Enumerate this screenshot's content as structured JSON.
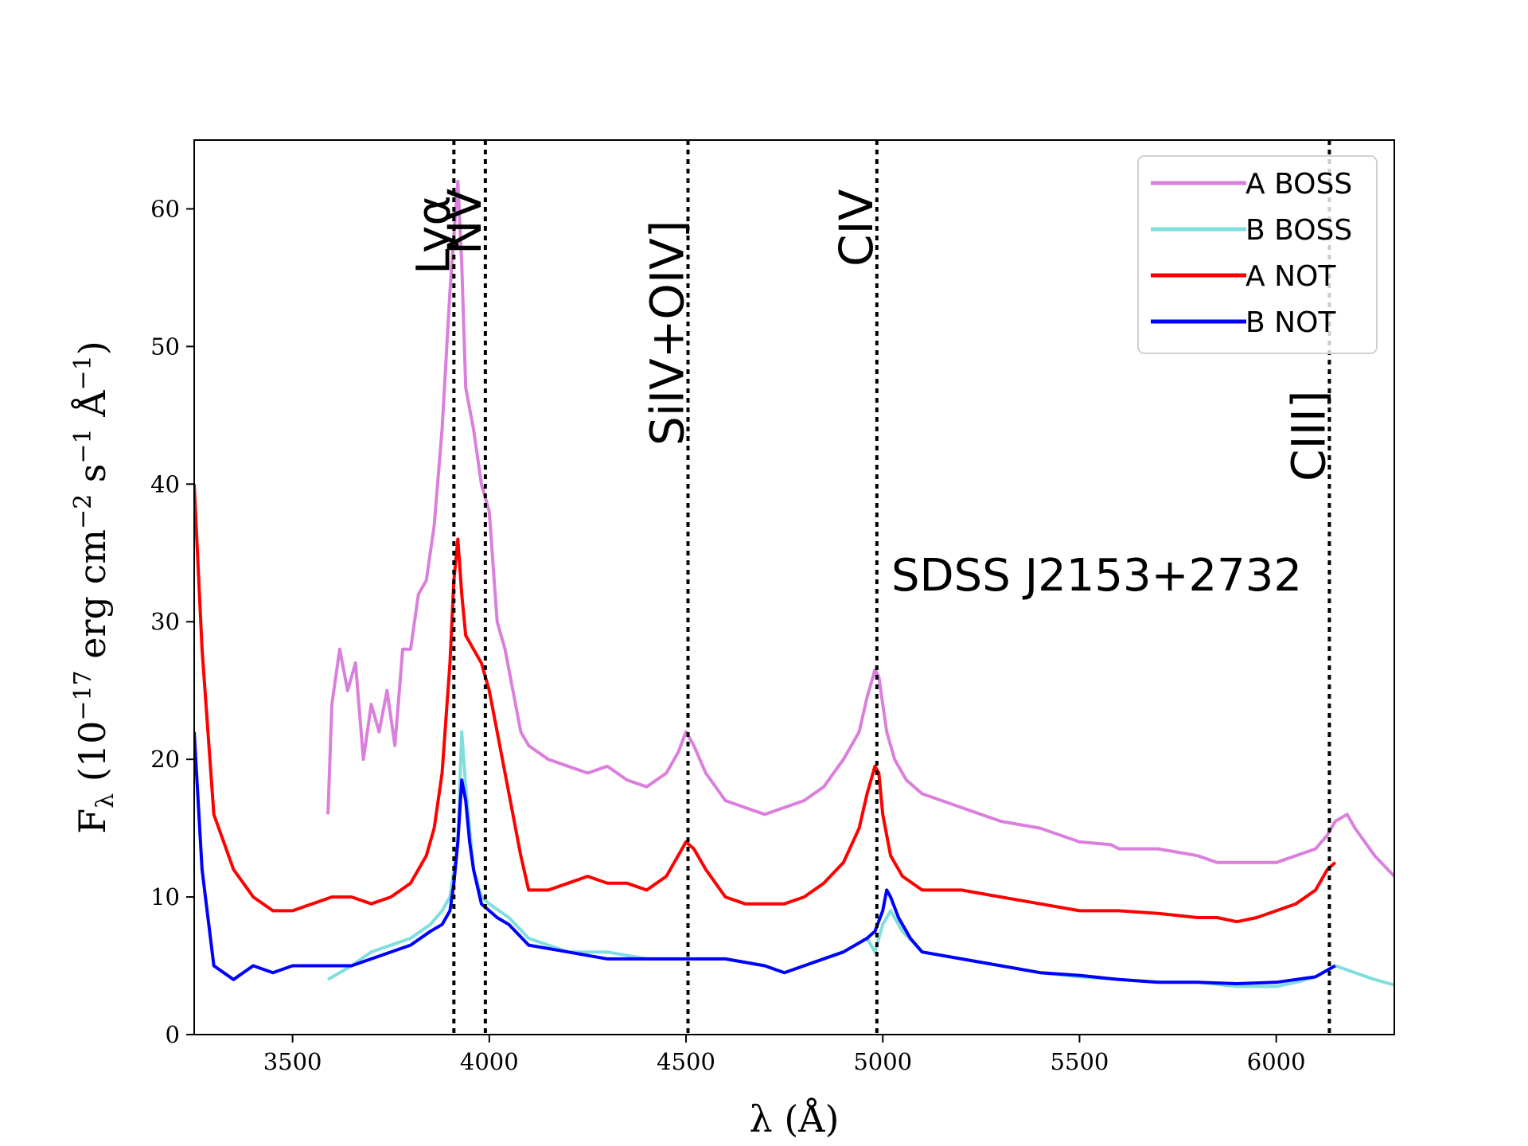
{
  "chart_data": {
    "type": "line",
    "title": "",
    "annotation": "SDSS J2153+2732",
    "xlabel": "λ (Å)",
    "ylabel_main": "F",
    "ylabel_sub": "λ",
    "ylabel_rest": " (10",
    "ylabel_exp1": "−17",
    "ylabel_mid": " erg cm",
    "ylabel_exp2": "−2",
    "ylabel_mid2": " s",
    "ylabel_exp3": "−1",
    "ylabel_mid3": " Å",
    "ylabel_exp4": "−1",
    "ylabel_end": ")",
    "xlim": [
      3250,
      6300
    ],
    "ylim": [
      0,
      65
    ],
    "xticks": [
      {
        "value": 3500,
        "label": "3500"
      },
      {
        "value": 4000,
        "label": "4000"
      },
      {
        "value": 4500,
        "label": "4500"
      },
      {
        "value": 5000,
        "label": "5000"
      },
      {
        "value": 5500,
        "label": "5500"
      },
      {
        "value": 6000,
        "label": "6000"
      }
    ],
    "yticks": [
      {
        "value": 0,
        "label": "0"
      },
      {
        "value": 10,
        "label": "10"
      },
      {
        "value": 20,
        "label": "20"
      },
      {
        "value": 30,
        "label": "30"
      },
      {
        "value": 40,
        "label": "40"
      },
      {
        "value": 50,
        "label": "50"
      },
      {
        "value": 60,
        "label": "60"
      }
    ],
    "emission_lines": [
      {
        "name": "Lyα",
        "x": 3910
      },
      {
        "name": "NV",
        "x": 3990
      },
      {
        "name": "SiIV+OIV]",
        "x": 4505
      },
      {
        "name": "CIV",
        "x": 4985
      },
      {
        "name": "CIII]",
        "x": 6135
      }
    ],
    "series": [
      {
        "name": "A BOSS",
        "color": "#da7fdc",
        "x": [
          3590,
          3600,
          3620,
          3640,
          3660,
          3680,
          3700,
          3720,
          3740,
          3760,
          3780,
          3800,
          3820,
          3840,
          3860,
          3880,
          3900,
          3910,
          3920,
          3930,
          3940,
          3960,
          3980,
          4000,
          4020,
          4040,
          4060,
          4080,
          4100,
          4150,
          4200,
          4250,
          4300,
          4350,
          4400,
          4450,
          4480,
          4500,
          4520,
          4550,
          4600,
          4650,
          4700,
          4750,
          4800,
          4850,
          4900,
          4940,
          4960,
          4980,
          4990,
          5000,
          5010,
          5030,
          5060,
          5100,
          5150,
          5200,
          5300,
          5400,
          5500,
          5580,
          5600,
          5700,
          5800,
          5850,
          5900,
          5950,
          6000,
          6050,
          6100,
          6130,
          6150,
          6180,
          6200,
          6250,
          6300
        ],
        "values": [
          16,
          24,
          28,
          25,
          27,
          20,
          24,
          22,
          25,
          21,
          28,
          28,
          32,
          33,
          37,
          44,
          54,
          58,
          62,
          56,
          47,
          44,
          40,
          38,
          30,
          28,
          25,
          22,
          21,
          20,
          19.5,
          19,
          19.5,
          18.5,
          18,
          19,
          20.5,
          22,
          21,
          19,
          17,
          16.5,
          16,
          16.5,
          17,
          18,
          20,
          22,
          24.5,
          26.5,
          26,
          24,
          22,
          20,
          18.5,
          17.5,
          17,
          16.5,
          15.5,
          15,
          14,
          13.8,
          13.5,
          13.5,
          13,
          12.5,
          12.5,
          12.5,
          12.5,
          13,
          13.5,
          14.5,
          15.5,
          16,
          15,
          13,
          11.5
        ]
      },
      {
        "name": "B BOSS",
        "color": "#7fdede",
        "x": [
          3590,
          3650,
          3700,
          3750,
          3800,
          3850,
          3880,
          3900,
          3920,
          3930,
          3940,
          3960,
          3980,
          4000,
          4050,
          4100,
          4200,
          4300,
          4400,
          4500,
          4600,
          4700,
          4750,
          4800,
          4900,
          4960,
          4980,
          5000,
          5020,
          5050,
          5100,
          5200,
          5300,
          5400,
          5500,
          5600,
          5700,
          5800,
          5900,
          6000,
          6050,
          6100,
          6150,
          6200,
          6250,
          6300
        ],
        "values": [
          4,
          5,
          6,
          6.5,
          7,
          8,
          9,
          10,
          14,
          22,
          18,
          12,
          10,
          9.5,
          8.5,
          7,
          6,
          6,
          5.5,
          5.5,
          5.5,
          5,
          4.5,
          5,
          6,
          7,
          6,
          8,
          9,
          7.5,
          6,
          5.5,
          5,
          4.5,
          4.2,
          4,
          3.8,
          3.8,
          3.5,
          3.5,
          3.8,
          4.2,
          5,
          4.5,
          4,
          3.6
        ]
      },
      {
        "name": "A NOT",
        "color": "#ff0000",
        "x": [
          3250,
          3270,
          3300,
          3350,
          3400,
          3450,
          3500,
          3550,
          3600,
          3650,
          3700,
          3750,
          3800,
          3820,
          3840,
          3860,
          3880,
          3900,
          3910,
          3920,
          3930,
          3940,
          3960,
          3980,
          4000,
          4020,
          4040,
          4060,
          4080,
          4100,
          4150,
          4200,
          4250,
          4300,
          4350,
          4400,
          4450,
          4480,
          4500,
          4520,
          4550,
          4600,
          4650,
          4700,
          4750,
          4800,
          4850,
          4900,
          4940,
          4960,
          4980,
          4990,
          5000,
          5020,
          5050,
          5100,
          5150,
          5200,
          5300,
          5400,
          5500,
          5600,
          5700,
          5800,
          5850,
          5900,
          5950,
          6000,
          6050,
          6100,
          6130,
          6150
        ],
        "values": [
          40,
          28,
          16,
          12,
          10,
          9,
          9,
          9.5,
          10,
          10,
          9.5,
          10,
          11,
          12,
          13,
          15,
          19,
          27,
          33,
          36,
          32,
          29,
          28,
          27,
          25,
          22,
          19,
          16,
          13,
          10.5,
          10.5,
          11,
          11.5,
          11,
          11,
          10.5,
          11.5,
          13,
          14,
          13.5,
          12,
          10,
          9.5,
          9.5,
          9.5,
          10,
          11,
          12.5,
          15,
          17.5,
          19.5,
          19,
          16,
          13,
          11.5,
          10.5,
          10.5,
          10.5,
          10,
          9.5,
          9,
          9,
          8.8,
          8.5,
          8.5,
          8.2,
          8.5,
          9,
          9.5,
          10.5,
          12,
          12.5
        ]
      },
      {
        "name": "B NOT",
        "color": "#0000ff",
        "x": [
          3250,
          3270,
          3300,
          3350,
          3400,
          3450,
          3500,
          3550,
          3600,
          3650,
          3700,
          3750,
          3800,
          3850,
          3880,
          3900,
          3910,
          3920,
          3930,
          3940,
          3950,
          3960,
          3980,
          4000,
          4020,
          4050,
          4100,
          4200,
          4300,
          4400,
          4500,
          4600,
          4700,
          4750,
          4800,
          4900,
          4960,
          4980,
          5000,
          5010,
          5020,
          5040,
          5070,
          5100,
          5200,
          5300,
          5400,
          5500,
          5600,
          5700,
          5800,
          5900,
          6000,
          6050,
          6100,
          6150
        ],
        "values": [
          22,
          12,
          5,
          4,
          5,
          4.5,
          5,
          5,
          5,
          5,
          5.5,
          6,
          6.5,
          7.5,
          8,
          9,
          11,
          14,
          18.5,
          17,
          14,
          12,
          9.5,
          9,
          8.5,
          8,
          6.5,
          6,
          5.5,
          5.5,
          5.5,
          5.5,
          5,
          4.5,
          5,
          6,
          7,
          7.5,
          9,
          10.5,
          10,
          8.5,
          7,
          6,
          5.5,
          5,
          4.5,
          4.3,
          4,
          3.8,
          3.8,
          3.7,
          3.8,
          4,
          4.2,
          5
        ]
      }
    ],
    "legend": {
      "placement": "top-right",
      "entries": [
        "A BOSS",
        "B BOSS",
        "A NOT",
        "B NOT"
      ]
    }
  }
}
